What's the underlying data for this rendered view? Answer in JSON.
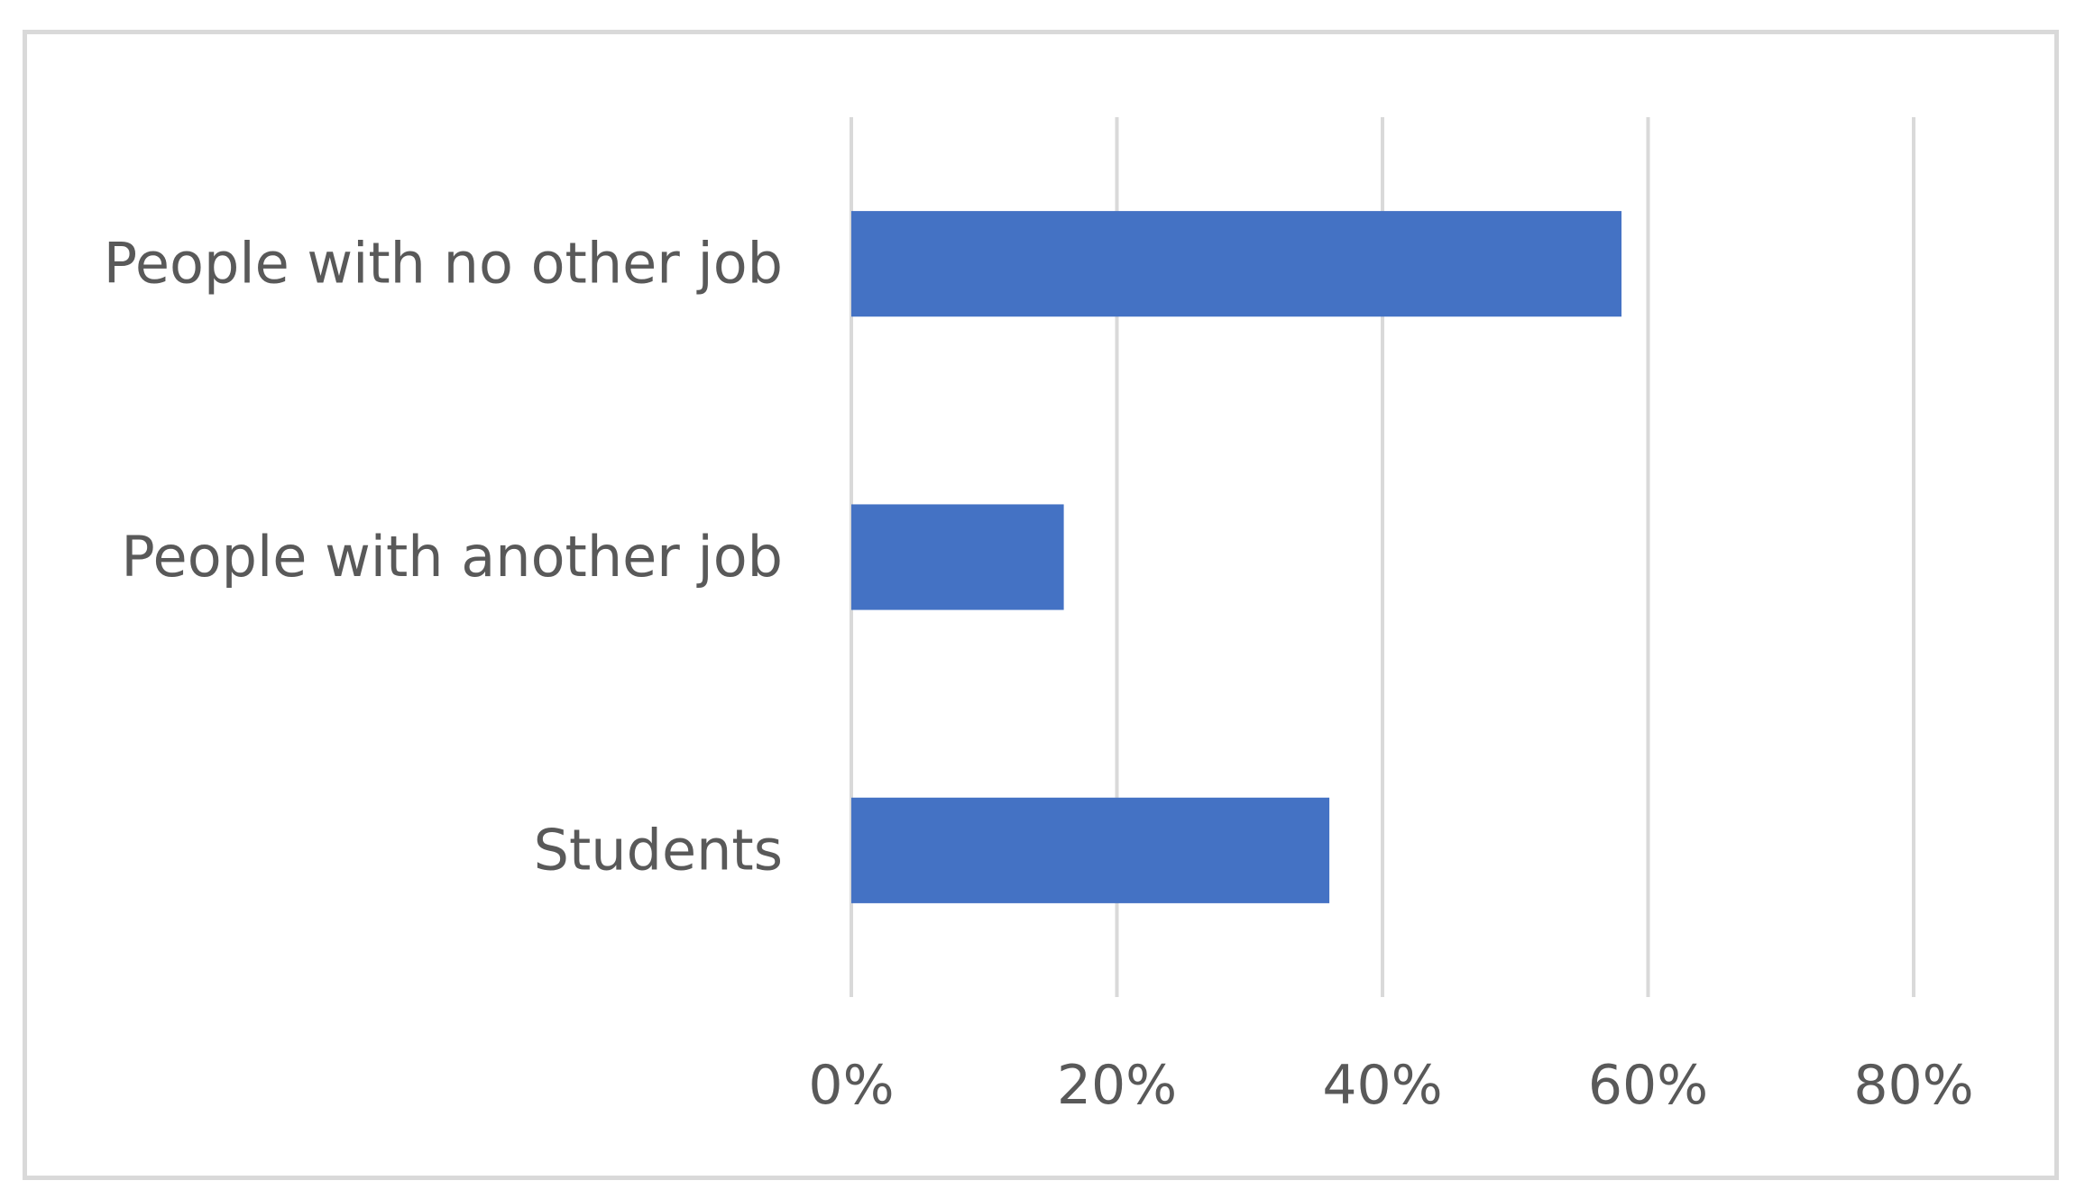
{
  "chart_data": {
    "type": "bar",
    "orientation": "horizontal",
    "categories": [
      "People with no other job",
      "People with another job",
      "Students"
    ],
    "values": [
      58,
      16,
      36
    ],
    "value_unit": "%",
    "title": "",
    "xlabel": "",
    "ylabel": "",
    "xlim": [
      0,
      80
    ],
    "xticks": [
      "0%",
      "20%",
      "40%",
      "60%",
      "80%"
    ],
    "grid": "vertical",
    "legend": "none",
    "bar_color": "#4472C4",
    "grid_color": "#D9D9D9",
    "text_color": "#595959"
  }
}
